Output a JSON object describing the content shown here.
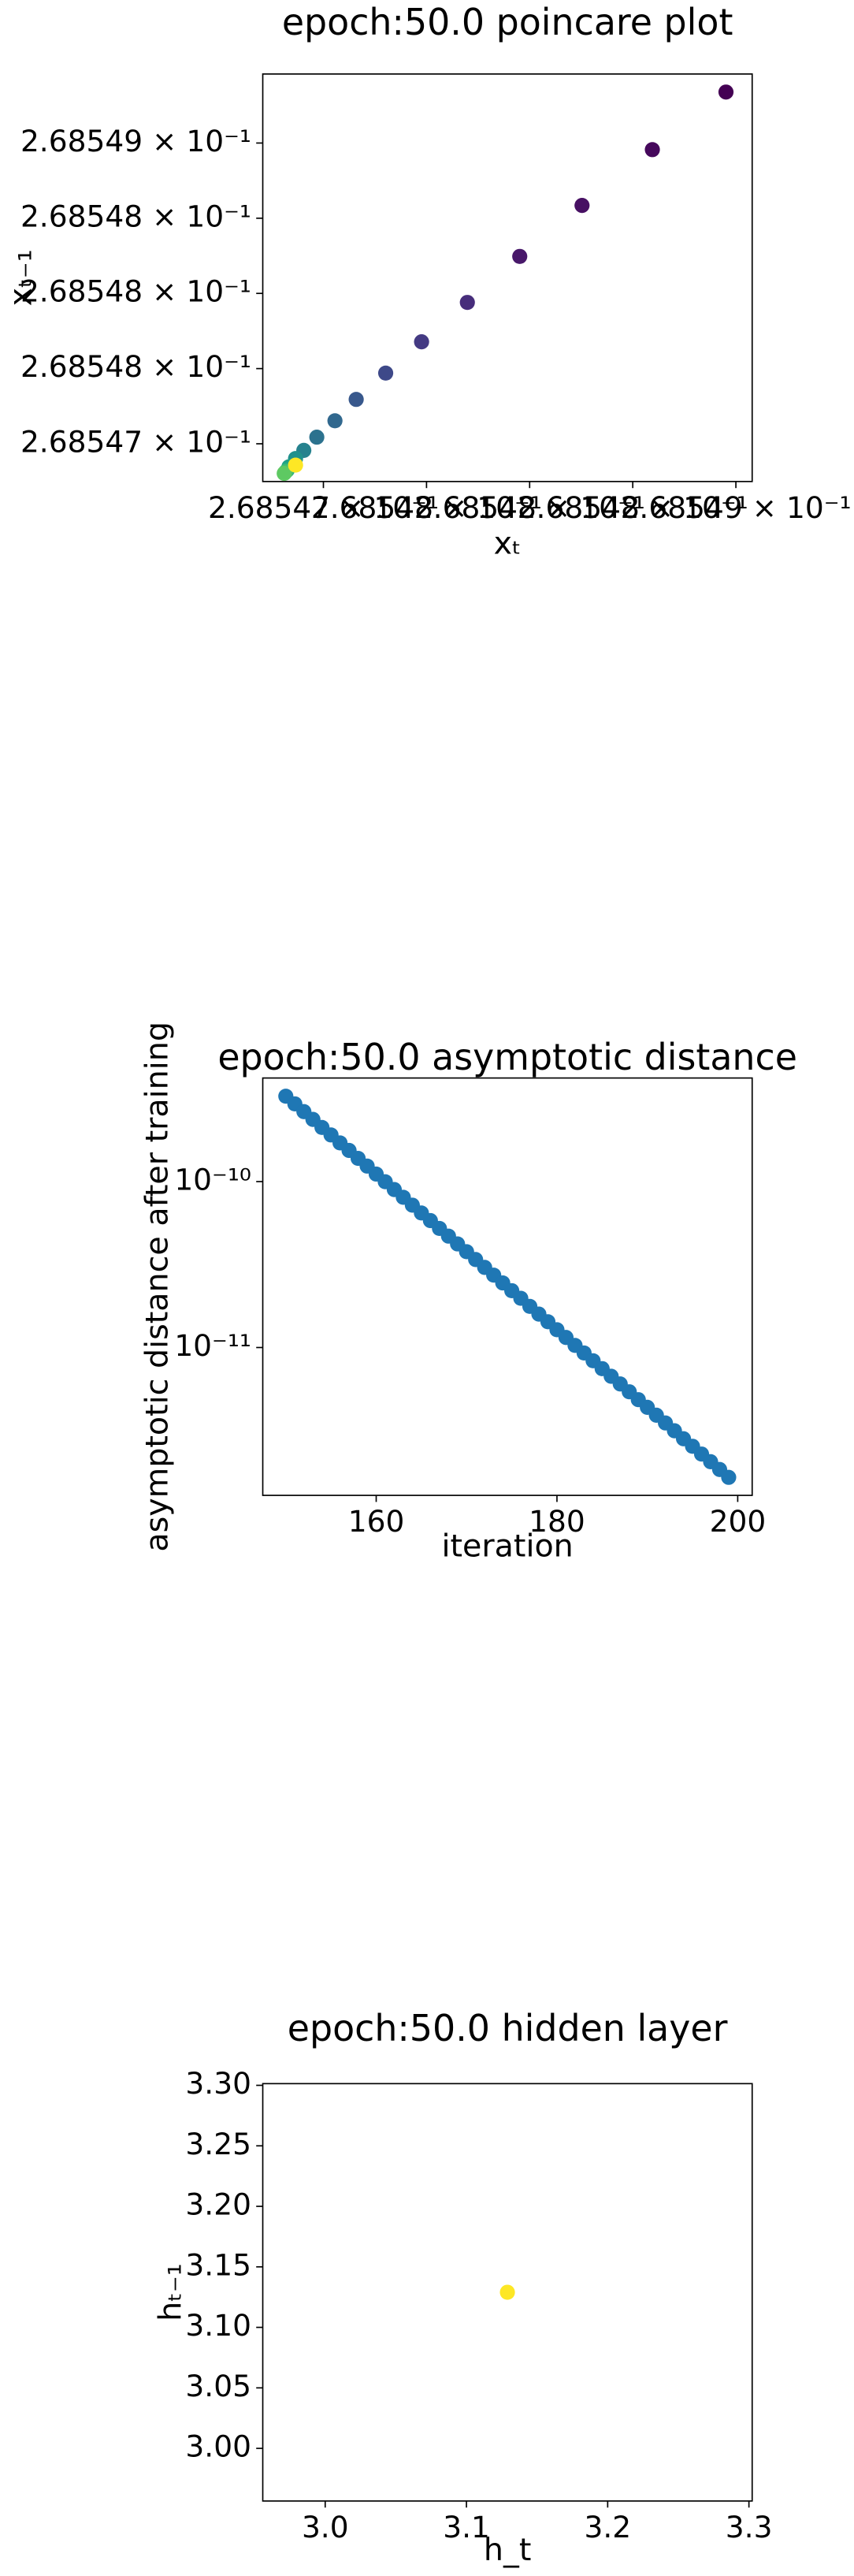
{
  "chart_data": [
    {
      "type": "scatter",
      "title": "epoch:50.0 poincare plot",
      "xlabel": "xₜ",
      "ylabel": "xₜ₋₁",
      "xscale": "log",
      "yscale": "log",
      "x": [
        0.268548952,
        0.268548595,
        0.268548254,
        0.268547952,
        0.268547698,
        0.268547476,
        0.268547302,
        0.268547159,
        0.268547056,
        0.268546968,
        0.268546905,
        0.268546865,
        0.268546833,
        0.268546825,
        0.268546817,
        0.26854681,
        0.268546865
      ],
      "values": [
        0.268549339,
        0.268548956,
        0.268548585,
        0.268548246,
        0.26854794,
        0.268547678,
        0.26854747,
        0.268547295,
        0.268547153,
        0.268547044,
        0.268546956,
        0.268546902,
        0.268546847,
        0.268546825,
        0.268546814,
        0.268546803,
        0.268546858
      ],
      "colors": [
        "#440154",
        "#46085c",
        "#471063",
        "#48186a",
        "#472d7b",
        "#443a83",
        "#3e4989",
        "#38588c",
        "#31688e",
        "#2c728e",
        "#26828e",
        "#21918c",
        "#1fa088",
        "#28ae80",
        "#3fbc73",
        "#5ec962",
        "#fde725"
      ],
      "xlim": [
        0.268546706,
        0.268549079
      ],
      "ylim": [
        0.268546749,
        0.268549459
      ],
      "xticks": [
        {
          "value": 0.268547,
          "label": "2.68547 × 10⁻¹"
        },
        {
          "value": 0.2685475,
          "label": "2.68548 × 10⁻¹"
        },
        {
          "value": 0.268548,
          "label": "2.68548 × 10⁻¹"
        },
        {
          "value": 0.2685485,
          "label": "2.68548 × 10⁻¹"
        },
        {
          "value": 0.268549,
          "label": "2.68549 × 10⁻¹"
        }
      ],
      "yticks": [
        {
          "value": 0.268547,
          "label": "2.68547 × 10⁻¹"
        },
        {
          "value": 0.2685475,
          "label": "2.68548 × 10⁻¹"
        },
        {
          "value": 0.268548,
          "label": "2.68548 × 10⁻¹"
        },
        {
          "value": 0.2685485,
          "label": "2.68548 × 10⁻¹"
        },
        {
          "value": 0.268549,
          "label": "2.68549 × 10⁻¹"
        }
      ]
    },
    {
      "type": "scatter",
      "title": "epoch:50.0 asymptotic distance",
      "xlabel": "iteration",
      "ylabel": "asymptotic distance after training",
      "yscale": "log",
      "color": "#1f77b4",
      "x": [
        150,
        151,
        152,
        153,
        154,
        155,
        156,
        157,
        158,
        159,
        160,
        161,
        162,
        163,
        164,
        165,
        166,
        167,
        168,
        169,
        170,
        171,
        172,
        173,
        174,
        175,
        176,
        177,
        178,
        179,
        180,
        181,
        182,
        183,
        184,
        185,
        186,
        187,
        188,
        189,
        190,
        191,
        192,
        193,
        194,
        195,
        196,
        197,
        198,
        199
      ],
      "values": [
        3.27e-10,
        2.94e-10,
        2.64e-10,
        2.37e-10,
        2.12e-10,
        1.91e-10,
        1.71e-10,
        1.54e-10,
        1.38e-10,
        1.24e-10,
        1.11e-10,
        9.98e-11,
        8.95e-11,
        8.04e-11,
        7.21e-11,
        6.47e-11,
        5.82e-11,
        5.22e-11,
        4.69e-11,
        4.21e-11,
        3.78e-11,
        3.39e-11,
        3.04e-11,
        2.73e-11,
        2.45e-11,
        2.2e-11,
        1.98e-11,
        1.77e-11,
        1.59e-11,
        1.43e-11,
        1.28e-11,
        1.15e-11,
        1.03e-11,
        9.27e-12,
        8.32e-12,
        7.46e-12,
        6.71e-12,
        6.03e-12,
        5.41e-12,
        4.85e-12,
        4.36e-12,
        3.91e-12,
        3.51e-12,
        3.15e-12,
        2.82e-12,
        2.54e-12,
        2.28e-12,
        2.05e-12,
        1.84e-12,
        1.65e-12
      ],
      "xlim": [
        147.45,
        201.6
      ],
      "ylim": [
        1.285e-12,
        4.21e-10
      ],
      "xticks": [
        160,
        180,
        200
      ],
      "yticks": [
        {
          "value": 1e-10,
          "label": "10⁻¹⁰"
        },
        {
          "value": 1e-11,
          "label": "10⁻¹¹"
        }
      ]
    },
    {
      "type": "scatter",
      "title": "epoch:50.0 hidden layer",
      "xlabel": "h_t",
      "ylabel": "hₜ₋₁",
      "color": "#fde725",
      "x": [
        3.129
      ],
      "values": [
        3.129
      ],
      "xlim": [
        2.9558,
        3.3023
      ],
      "ylim": [
        2.9565,
        3.3014
      ],
      "xticks": [
        {
          "value": 3.0,
          "label": "3.0"
        },
        {
          "value": 3.1,
          "label": "3.1"
        },
        {
          "value": 3.2,
          "label": "3.2"
        },
        {
          "value": 3.3,
          "label": "3.3"
        }
      ],
      "yticks": [
        {
          "value": 3.0,
          "label": "3.00"
        },
        {
          "value": 3.05,
          "label": "3.05"
        },
        {
          "value": 3.1,
          "label": "3.10"
        },
        {
          "value": 3.15,
          "label": "3.15"
        },
        {
          "value": 3.2,
          "label": "3.20"
        },
        {
          "value": 3.25,
          "label": "3.25"
        },
        {
          "value": 3.3,
          "label": "3.30"
        }
      ]
    }
  ]
}
